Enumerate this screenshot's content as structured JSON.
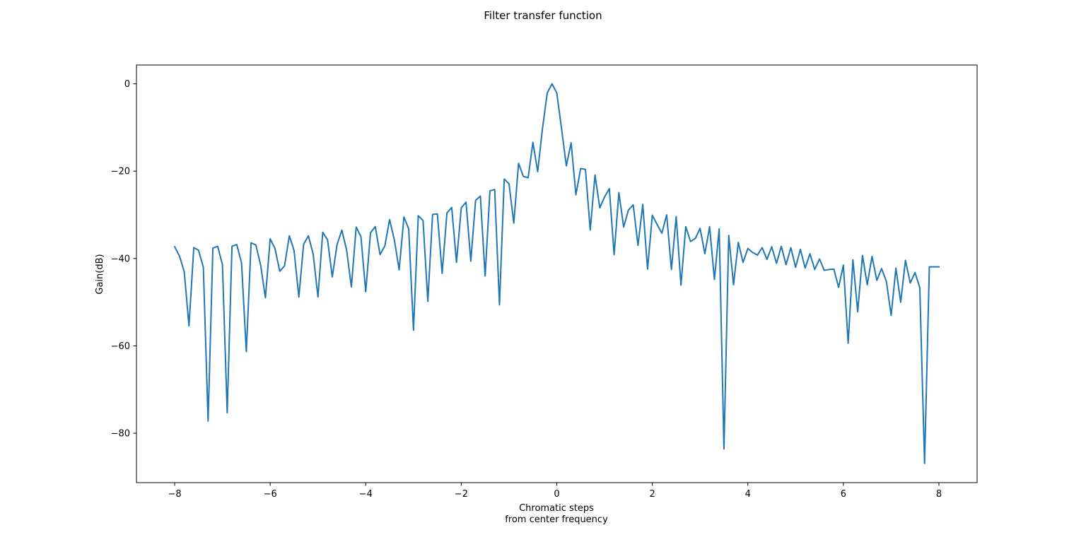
{
  "chart_data": {
    "type": "line",
    "title": "Filter transfer function",
    "xlabel_lines": [
      "Chromatic steps",
      "from center frequency"
    ],
    "ylabel": "Gain(dB)",
    "xlim": [
      -8.8,
      8.8
    ],
    "ylim": [
      -91.3,
      4.3
    ],
    "xticks": [
      -8,
      -6,
      -4,
      -2,
      0,
      2,
      4,
      6,
      8
    ],
    "xtick_labels": [
      "−8",
      "−6",
      "−4",
      "−2",
      "0",
      "2",
      "4",
      "6",
      "8"
    ],
    "yticks": [
      0,
      -20,
      -40,
      -60,
      -80
    ],
    "ytick_labels": [
      "0",
      "−20",
      "−40",
      "−60",
      "−80"
    ],
    "grid": false,
    "series": [
      {
        "color": "#1f77b4",
        "points": [
          [
            -8.0,
            -37.3
          ],
          [
            -7.9,
            -39.4
          ],
          [
            -7.8,
            -43.0
          ],
          [
            -7.7,
            -55.4
          ],
          [
            -7.6,
            -37.5
          ],
          [
            -7.5,
            -38.1
          ],
          [
            -7.4,
            -42.0
          ],
          [
            -7.3,
            -77.2
          ],
          [
            -7.2,
            -37.6
          ],
          [
            -7.1,
            -37.2
          ],
          [
            -7.0,
            -41.4
          ],
          [
            -6.9,
            -75.3
          ],
          [
            -6.8,
            -37.2
          ],
          [
            -6.7,
            -36.8
          ],
          [
            -6.6,
            -41.0
          ],
          [
            -6.5,
            -61.3
          ],
          [
            -6.4,
            -36.4
          ],
          [
            -6.3,
            -36.9
          ],
          [
            -6.2,
            -41.5
          ],
          [
            -6.1,
            -49.0
          ],
          [
            -6.0,
            -35.5
          ],
          [
            -5.9,
            -37.7
          ],
          [
            -5.8,
            -42.9
          ],
          [
            -5.7,
            -41.7
          ],
          [
            -5.6,
            -34.8
          ],
          [
            -5.5,
            -38.2
          ],
          [
            -5.4,
            -48.8
          ],
          [
            -5.3,
            -36.7
          ],
          [
            -5.2,
            -34.8
          ],
          [
            -5.1,
            -39.0
          ],
          [
            -5.0,
            -48.8
          ],
          [
            -4.9,
            -34.0
          ],
          [
            -4.8,
            -35.7
          ],
          [
            -4.7,
            -44.2
          ],
          [
            -4.6,
            -36.8
          ],
          [
            -4.5,
            -33.5
          ],
          [
            -4.4,
            -38.1
          ],
          [
            -4.3,
            -46.5
          ],
          [
            -4.2,
            -32.8
          ],
          [
            -4.1,
            -35.0
          ],
          [
            -4.0,
            -47.6
          ],
          [
            -3.9,
            -34.1
          ],
          [
            -3.8,
            -32.7
          ],
          [
            -3.7,
            -39.1
          ],
          [
            -3.6,
            -37.1
          ],
          [
            -3.5,
            -31.1
          ],
          [
            -3.4,
            -35.8
          ],
          [
            -3.3,
            -42.6
          ],
          [
            -3.2,
            -30.5
          ],
          [
            -3.1,
            -33.2
          ],
          [
            -3.0,
            -56.4
          ],
          [
            -2.9,
            -30.2
          ],
          [
            -2.8,
            -31.3
          ],
          [
            -2.7,
            -49.8
          ],
          [
            -2.6,
            -29.9
          ],
          [
            -2.5,
            -29.8
          ],
          [
            -2.4,
            -43.4
          ],
          [
            -2.3,
            -29.6
          ],
          [
            -2.2,
            -28.3
          ],
          [
            -2.1,
            -40.9
          ],
          [
            -2.0,
            -28.4
          ],
          [
            -1.9,
            -27.1
          ],
          [
            -1.8,
            -40.6
          ],
          [
            -1.7,
            -26.7
          ],
          [
            -1.6,
            -25.7
          ],
          [
            -1.5,
            -44.0
          ],
          [
            -1.4,
            -24.5
          ],
          [
            -1.3,
            -24.2
          ],
          [
            -1.2,
            -50.6
          ],
          [
            -1.1,
            -21.8
          ],
          [
            -1.0,
            -22.9
          ],
          [
            -0.9,
            -31.9
          ],
          [
            -0.8,
            -18.2
          ],
          [
            -0.7,
            -21.2
          ],
          [
            -0.6,
            -21.5
          ],
          [
            -0.5,
            -13.4
          ],
          [
            -0.4,
            -20.1
          ],
          [
            -0.3,
            -10.3
          ],
          [
            -0.2,
            -2.1
          ],
          [
            -0.1,
            0.0
          ],
          [
            0.0,
            -2.1
          ],
          [
            0.1,
            -10.3
          ],
          [
            0.2,
            -18.8
          ],
          [
            0.3,
            -13.5
          ],
          [
            0.4,
            -25.4
          ],
          [
            0.5,
            -19.4
          ],
          [
            0.6,
            -19.6
          ],
          [
            0.7,
            -33.5
          ],
          [
            0.8,
            -20.9
          ],
          [
            0.9,
            -28.4
          ],
          [
            1.0,
            -25.9
          ],
          [
            1.1,
            -24.0
          ],
          [
            1.2,
            -39.1
          ],
          [
            1.3,
            -24.9
          ],
          [
            1.4,
            -32.8
          ],
          [
            1.5,
            -28.9
          ],
          [
            1.6,
            -27.7
          ],
          [
            1.7,
            -37.0
          ],
          [
            1.8,
            -27.6
          ],
          [
            1.9,
            -42.4
          ],
          [
            2.0,
            -30.1
          ],
          [
            2.1,
            -32.2
          ],
          [
            2.2,
            -34.2
          ],
          [
            2.3,
            -30.0
          ],
          [
            2.4,
            -42.5
          ],
          [
            2.5,
            -30.4
          ],
          [
            2.6,
            -46.1
          ],
          [
            2.7,
            -32.7
          ],
          [
            2.8,
            -36.1
          ],
          [
            2.9,
            -35.4
          ],
          [
            3.0,
            -33.1
          ],
          [
            3.1,
            -38.9
          ],
          [
            3.2,
            -32.7
          ],
          [
            3.3,
            -44.8
          ],
          [
            3.4,
            -33.2
          ],
          [
            3.5,
            -83.6
          ],
          [
            3.6,
            -34.7
          ],
          [
            3.7,
            -46.0
          ],
          [
            3.8,
            -36.3
          ],
          [
            3.9,
            -40.9
          ],
          [
            4.0,
            -37.7
          ],
          [
            4.1,
            -38.6
          ],
          [
            4.2,
            -39.2
          ],
          [
            4.3,
            -37.5
          ],
          [
            4.4,
            -40.2
          ],
          [
            4.5,
            -37.3
          ],
          [
            4.6,
            -41.1
          ],
          [
            4.7,
            -37.2
          ],
          [
            4.8,
            -41.4
          ],
          [
            4.9,
            -37.5
          ],
          [
            5.0,
            -42.0
          ],
          [
            5.1,
            -37.9
          ],
          [
            5.2,
            -42.2
          ],
          [
            5.3,
            -38.9
          ],
          [
            5.4,
            -42.5
          ],
          [
            5.5,
            -40.1
          ],
          [
            5.6,
            -42.7
          ],
          [
            5.7,
            -42.5
          ],
          [
            5.8,
            -42.4
          ],
          [
            5.9,
            -46.6
          ],
          [
            6.0,
            -41.5
          ],
          [
            6.1,
            -59.4
          ],
          [
            6.2,
            -40.3
          ],
          [
            6.3,
            -52.2
          ],
          [
            6.4,
            -39.3
          ],
          [
            6.5,
            -46.0
          ],
          [
            6.6,
            -39.5
          ],
          [
            6.7,
            -45.0
          ],
          [
            6.8,
            -42.3
          ],
          [
            6.9,
            -45.2
          ],
          [
            7.0,
            -53.0
          ],
          [
            7.1,
            -42.2
          ],
          [
            7.2,
            -50.0
          ],
          [
            7.3,
            -40.4
          ],
          [
            7.4,
            -45.6
          ],
          [
            7.5,
            -43.2
          ],
          [
            7.6,
            -46.7
          ],
          [
            7.7,
            -86.9
          ],
          [
            7.8,
            -41.9
          ],
          [
            8.0,
            -41.9
          ]
        ]
      }
    ]
  }
}
